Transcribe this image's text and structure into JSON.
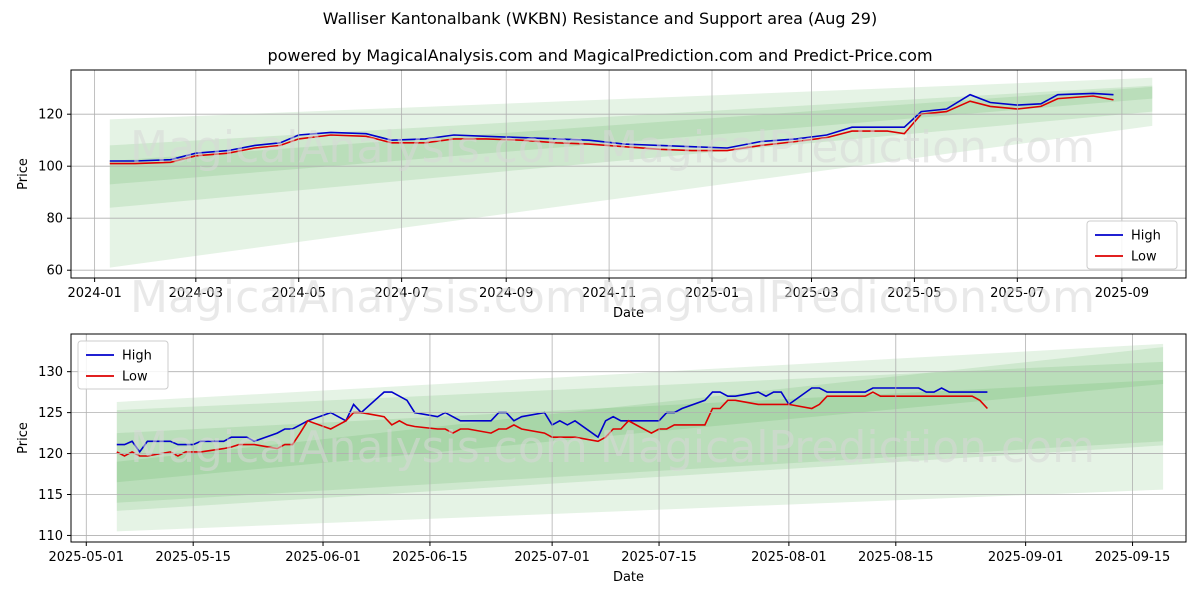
{
  "title": "Walliser Kantonalbank (WKBN) Resistance and Support area (Aug 29)",
  "subtitle": "powered by MagicalAnalysis.com and MagicalPrediction.com and Predict-Price.com",
  "watermarks": [
    "MagicalAnalysis.com",
    "MagicalPrediction.com"
  ],
  "colors": {
    "high": "#0000cc",
    "low": "#dd0000",
    "band": "#2ca02c"
  },
  "chart_data": [
    {
      "type": "line",
      "ylabel": "Price",
      "xlabel": "Date",
      "xlim": [
        "2023-12-18",
        "2025-10-09"
      ],
      "ylim": [
        57,
        137
      ],
      "grid": true,
      "legend_position": "lower-right",
      "x_ticks": [
        "2024-01",
        "2024-03",
        "2024-05",
        "2024-07",
        "2024-09",
        "2024-11",
        "2025-01",
        "2025-03",
        "2025-05",
        "2025-07",
        "2025-09"
      ],
      "y_ticks": [
        60,
        80,
        100,
        120
      ],
      "bands": [
        {
          "x": [
            "2024-01-10",
            "2025-09-19"
          ],
          "upper": [
            118,
            134
          ],
          "lower": [
            61,
            115.5
          ]
        },
        {
          "x": [
            "2024-01-10",
            "2025-09-19"
          ],
          "upper": [
            108,
            131
          ],
          "lower": [
            84,
            121
          ]
        },
        {
          "x": [
            "2024-01-10",
            "2025-09-19"
          ],
          "upper": [
            102,
            130.5
          ],
          "lower": [
            93,
            126
          ]
        }
      ],
      "series": [
        {
          "name": "High",
          "x": [
            "2024-01-10",
            "2024-01-25",
            "2024-02-15",
            "2024-03-01",
            "2024-03-20",
            "2024-04-05",
            "2024-04-20",
            "2024-05-01",
            "2024-05-20",
            "2024-06-10",
            "2024-06-25",
            "2024-07-15",
            "2024-08-01",
            "2024-08-20",
            "2024-09-10",
            "2024-10-01",
            "2024-10-20",
            "2024-11-10",
            "2024-12-01",
            "2024-12-20",
            "2025-01-10",
            "2025-01-30",
            "2025-02-20",
            "2025-03-10",
            "2025-03-25",
            "2025-04-15",
            "2025-04-25",
            "2025-05-05",
            "2025-05-20",
            "2025-06-03",
            "2025-06-15",
            "2025-07-01",
            "2025-07-15",
            "2025-07-25",
            "2025-08-15",
            "2025-08-27"
          ],
          "values": [
            102,
            102,
            102.5,
            105,
            106,
            108,
            109,
            112,
            113,
            112.5,
            110,
            110.5,
            112,
            111.5,
            111,
            110.5,
            110,
            108.5,
            108,
            107.5,
            107,
            109.5,
            110.5,
            112,
            115,
            115,
            115,
            121,
            122,
            127.5,
            124.5,
            123.5,
            124,
            127.5,
            128,
            127.5
          ]
        },
        {
          "name": "Low",
          "x": [
            "2024-01-10",
            "2024-01-25",
            "2024-02-15",
            "2024-03-01",
            "2024-03-20",
            "2024-04-05",
            "2024-04-20",
            "2024-05-01",
            "2024-05-20",
            "2024-06-10",
            "2024-06-25",
            "2024-07-15",
            "2024-08-01",
            "2024-08-20",
            "2024-09-10",
            "2024-10-01",
            "2024-10-20",
            "2024-11-10",
            "2024-12-01",
            "2024-12-20",
            "2025-01-10",
            "2025-01-30",
            "2025-02-20",
            "2025-03-10",
            "2025-03-25",
            "2025-04-15",
            "2025-04-25",
            "2025-05-05",
            "2025-05-20",
            "2025-06-03",
            "2025-06-15",
            "2025-07-01",
            "2025-07-15",
            "2025-07-25",
            "2025-08-15",
            "2025-08-27"
          ],
          "values": [
            101,
            101,
            101.5,
            104,
            105,
            107,
            108,
            110.5,
            112,
            111.5,
            109,
            109,
            110.5,
            110.5,
            110,
            109,
            108.5,
            107.5,
            106.5,
            106,
            106,
            108,
            109.5,
            111,
            113.5,
            113.5,
            112.5,
            120,
            121,
            125,
            123,
            122,
            123,
            126,
            127,
            125.5
          ]
        }
      ]
    },
    {
      "type": "line",
      "ylabel": "Price",
      "xlabel": "Date",
      "xlim": [
        "2025-04-29",
        "2025-09-22"
      ],
      "ylim": [
        109.2,
        134.6
      ],
      "grid": true,
      "legend_position": "upper-left",
      "x_ticks": [
        "2025-05-01",
        "2025-05-15",
        "2025-06-01",
        "2025-06-15",
        "2025-07-01",
        "2025-07-15",
        "2025-08-01",
        "2025-08-15",
        "2025-09-01",
        "2025-09-15"
      ],
      "y_ticks": [
        110,
        115,
        120,
        125,
        130
      ],
      "bands": [
        {
          "x": [
            "2025-05-05",
            "2025-09-19"
          ],
          "upper": [
            126.3,
            133.4
          ],
          "lower": [
            110.5,
            115.6
          ]
        },
        {
          "x": [
            "2025-05-05",
            "2025-09-19"
          ],
          "upper": [
            125.3,
            131.2
          ],
          "lower": [
            113.0,
            121.0
          ]
        },
        {
          "x": [
            "2025-05-05",
            "2025-09-19"
          ],
          "upper": [
            122.5,
            129.0
          ],
          "lower": [
            116.5,
            128.5
          ]
        },
        {
          "x": [
            "2025-05-05",
            "2025-09-19"
          ],
          "upper": [
            119.0,
            133.0
          ],
          "lower": [
            114.0,
            121.5
          ]
        }
      ],
      "series": [
        {
          "name": "High",
          "x": [
            "2025-05-05",
            "2025-05-06",
            "2025-05-07",
            "2025-05-08",
            "2025-05-09",
            "2025-05-12",
            "2025-05-13",
            "2025-05-14",
            "2025-05-15",
            "2025-05-16",
            "2025-05-19",
            "2025-05-20",
            "2025-05-21",
            "2025-05-22",
            "2025-05-23",
            "2025-05-26",
            "2025-05-27",
            "2025-05-28",
            "2025-05-29",
            "2025-05-30",
            "2025-06-02",
            "2025-06-03",
            "2025-06-04",
            "2025-06-05",
            "2025-06-06",
            "2025-06-09",
            "2025-06-10",
            "2025-06-11",
            "2025-06-12",
            "2025-06-13",
            "2025-06-16",
            "2025-06-17",
            "2025-06-18",
            "2025-06-19",
            "2025-06-20",
            "2025-06-23",
            "2025-06-24",
            "2025-06-25",
            "2025-06-26",
            "2025-06-27",
            "2025-06-30",
            "2025-07-01",
            "2025-07-02",
            "2025-07-03",
            "2025-07-04",
            "2025-07-07",
            "2025-07-08",
            "2025-07-09",
            "2025-07-10",
            "2025-07-11",
            "2025-07-14",
            "2025-07-15",
            "2025-07-16",
            "2025-07-17",
            "2025-07-18",
            "2025-07-21",
            "2025-07-22",
            "2025-07-23",
            "2025-07-24",
            "2025-07-25",
            "2025-07-28",
            "2025-07-29",
            "2025-07-30",
            "2025-07-31",
            "2025-08-01",
            "2025-08-04",
            "2025-08-05",
            "2025-08-06",
            "2025-08-07",
            "2025-08-08",
            "2025-08-11",
            "2025-08-12",
            "2025-08-13",
            "2025-08-14",
            "2025-08-15",
            "2025-08-18",
            "2025-08-19",
            "2025-08-20",
            "2025-08-21",
            "2025-08-22",
            "2025-08-25",
            "2025-08-26",
            "2025-08-27"
          ],
          "values": [
            121.1,
            121.1,
            121.5,
            120.2,
            121.5,
            121.5,
            121.1,
            121.1,
            121.1,
            121.5,
            121.5,
            122.0,
            122.0,
            122.0,
            121.5,
            122.5,
            123.0,
            123.0,
            123.5,
            124.0,
            125.0,
            124.5,
            124.0,
            126.0,
            125.0,
            127.5,
            127.5,
            127.0,
            126.5,
            125.0,
            124.5,
            125.0,
            124.5,
            124.0,
            124.0,
            124.0,
            125.0,
            125.0,
            124.0,
            124.5,
            125.0,
            123.5,
            124.0,
            123.5,
            124.0,
            122.0,
            124.0,
            124.5,
            124.0,
            124.0,
            124.0,
            124.0,
            125.0,
            125.0,
            125.5,
            126.5,
            127.5,
            127.5,
            127.0,
            127.0,
            127.5,
            127.0,
            127.5,
            127.5,
            126.0,
            128.0,
            128.0,
            127.5,
            127.5,
            127.5,
            127.5,
            128.0,
            128.0,
            128.0,
            128.0,
            128.0,
            127.5,
            127.5,
            128.0,
            127.5,
            127.5,
            127.5,
            127.5
          ]
        },
        {
          "name": "Low",
          "x": [
            "2025-05-05",
            "2025-05-06",
            "2025-05-07",
            "2025-05-08",
            "2025-05-09",
            "2025-05-12",
            "2025-05-13",
            "2025-05-14",
            "2025-05-15",
            "2025-05-16",
            "2025-05-19",
            "2025-05-20",
            "2025-05-21",
            "2025-05-22",
            "2025-05-23",
            "2025-05-26",
            "2025-05-27",
            "2025-05-28",
            "2025-05-29",
            "2025-05-30",
            "2025-06-02",
            "2025-06-03",
            "2025-06-04",
            "2025-06-05",
            "2025-06-06",
            "2025-06-09",
            "2025-06-10",
            "2025-06-11",
            "2025-06-12",
            "2025-06-13",
            "2025-06-16",
            "2025-06-17",
            "2025-06-18",
            "2025-06-19",
            "2025-06-20",
            "2025-06-23",
            "2025-06-24",
            "2025-06-25",
            "2025-06-26",
            "2025-06-27",
            "2025-06-30",
            "2025-07-01",
            "2025-07-02",
            "2025-07-03",
            "2025-07-04",
            "2025-07-07",
            "2025-07-08",
            "2025-07-09",
            "2025-07-10",
            "2025-07-11",
            "2025-07-14",
            "2025-07-15",
            "2025-07-16",
            "2025-07-17",
            "2025-07-18",
            "2025-07-21",
            "2025-07-22",
            "2025-07-23",
            "2025-07-24",
            "2025-07-25",
            "2025-07-28",
            "2025-07-29",
            "2025-07-30",
            "2025-07-31",
            "2025-08-01",
            "2025-08-04",
            "2025-08-05",
            "2025-08-06",
            "2025-08-07",
            "2025-08-08",
            "2025-08-11",
            "2025-08-12",
            "2025-08-13",
            "2025-08-14",
            "2025-08-15",
            "2025-08-18",
            "2025-08-19",
            "2025-08-20",
            "2025-08-21",
            "2025-08-22",
            "2025-08-25",
            "2025-08-26",
            "2025-08-27"
          ],
          "values": [
            120.2,
            119.7,
            120.2,
            119.7,
            119.7,
            120.2,
            119.7,
            120.2,
            120.2,
            120.2,
            120.6,
            120.8,
            121.1,
            121.1,
            121.1,
            120.6,
            121.1,
            121.1,
            122.5,
            124.0,
            123.0,
            123.5,
            124.0,
            125.0,
            125.0,
            124.5,
            123.5,
            124.0,
            123.5,
            123.3,
            123.0,
            123.0,
            122.5,
            123.0,
            123.0,
            122.5,
            123.0,
            123.0,
            123.5,
            123.0,
            122.5,
            122.0,
            122.0,
            122.0,
            122.0,
            121.5,
            122.0,
            123.0,
            123.0,
            124.0,
            122.5,
            123.0,
            123.0,
            123.5,
            123.5,
            123.5,
            125.5,
            125.5,
            126.5,
            126.5,
            126.0,
            126.0,
            126.0,
            126.0,
            126.0,
            125.5,
            126.0,
            127.0,
            127.0,
            127.0,
            127.0,
            127.5,
            127.0,
            127.0,
            127.0,
            127.0,
            127.0,
            127.0,
            127.0,
            127.0,
            127.0,
            126.5,
            125.5
          ]
        }
      ]
    }
  ]
}
